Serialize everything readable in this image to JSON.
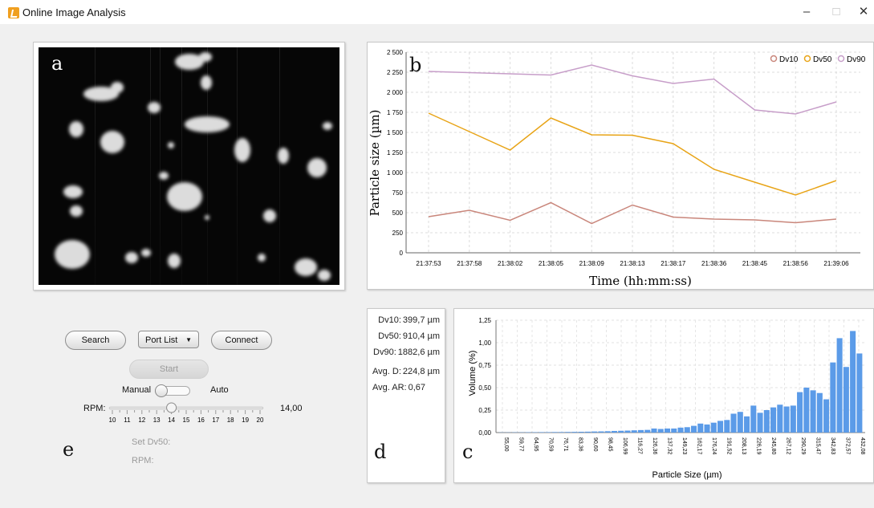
{
  "window": {
    "title": "Online Image Analysis",
    "minimize": "–",
    "maximize": "□",
    "close": "✕"
  },
  "panels": {
    "a": "a",
    "b": "b",
    "c": "c",
    "d": "d",
    "e": "e"
  },
  "controls": {
    "search_label": "Search",
    "port_list_label": "Port List",
    "connect_label": "Connect",
    "start_label": "Start",
    "mode_left": "Manual",
    "mode_right": "Auto",
    "mode_value": "Manual",
    "rpm_label": "RPM:",
    "rpm_value": "14,00",
    "rpm_ticks": [
      "10",
      "11",
      "12",
      "13",
      "14",
      "15",
      "16",
      "17",
      "18",
      "19",
      "20"
    ],
    "rpm_slider": {
      "min": 10,
      "max": 20,
      "value": 14
    },
    "set_dv50_label": "Set Dv50:",
    "rpm_setting_label": "RPM:"
  },
  "stats": [
    {
      "label": "Dv10:",
      "value": "399,7 µm"
    },
    {
      "label": "Dv50:",
      "value": "910,4 µm"
    },
    {
      "label": "Dv90:",
      "value": "1882,6 µm"
    },
    {
      "label": "Avg. D:",
      "value": "224,8 µm"
    },
    {
      "label": "Avg. AR:",
      "value": "0,67"
    }
  ],
  "chart_data": [
    {
      "type": "line",
      "xlabel": "Time (hh:mm:ss)",
      "ylabel": "Particle size (µm)",
      "ylim": [
        0,
        2500
      ],
      "yticks": [
        0,
        250,
        500,
        750,
        1000,
        1250,
        1500,
        1750,
        2000,
        2250,
        2500
      ],
      "ytick_labels": [
        "0",
        "250",
        "500",
        "750",
        "1 000",
        "1 250",
        "1 500",
        "1 750",
        "2 000",
        "2 250",
        "2 500"
      ],
      "categories": [
        "21:37:53",
        "21:37:58",
        "21:38:02",
        "21:38:05",
        "21:38:09",
        "21:38:13",
        "21:38:17",
        "21:38:36",
        "21:38:45",
        "21:38:56",
        "21:39:06"
      ],
      "grid": true,
      "legend_position": "top-right",
      "series": [
        {
          "name": "Dv10",
          "color": "#c9867b",
          "values": [
            450,
            530,
            405,
            625,
            365,
            595,
            445,
            420,
            410,
            375,
            420
          ]
        },
        {
          "name": "Dv50",
          "color": "#e8a417",
          "values": [
            1740,
            1510,
            1280,
            1680,
            1470,
            1465,
            1360,
            1040,
            880,
            720,
            900
          ]
        },
        {
          "name": "Dv90",
          "color": "#c79ec9",
          "values": [
            2260,
            2245,
            2230,
            2215,
            2340,
            2205,
            2110,
            2165,
            1780,
            1730,
            1880
          ]
        }
      ]
    },
    {
      "type": "bar",
      "xlabel": "Particle Size (µm)",
      "ylabel": "Volume (%)",
      "ylim": [
        0,
        1.25
      ],
      "yticks": [
        0,
        0.25,
        0.5,
        0.75,
        1,
        1.25
      ],
      "ytick_labels": [
        "0,00",
        "0,25",
        "0,50",
        "0,75",
        "1,00",
        "1,25"
      ],
      "grid": true,
      "color": "#5b9be8",
      "tick_labels": [
        "55,00",
        "59,77",
        "64,95",
        "70,59",
        "76,71",
        "83,36",
        "90,60",
        "98,45",
        "106,99",
        "116,27",
        "126,36",
        "137,32",
        "149,23",
        "162,17",
        "176,24",
        "191,52",
        "208,13",
        "226,19",
        "245,80",
        "267,12",
        "290,29",
        "315,47",
        "342,83",
        "372,57",
        "432,08"
      ],
      "values": [
        0.002,
        0.002,
        0.003,
        0.003,
        0.004,
        0.004,
        0.005,
        0.005,
        0.006,
        0.006,
        0.007,
        0.008,
        0.009,
        0.01,
        0.012,
        0.013,
        0.015,
        0.018,
        0.02,
        0.022,
        0.025,
        0.028,
        0.03,
        0.045,
        0.04,
        0.045,
        0.045,
        0.055,
        0.06,
        0.075,
        0.1,
        0.09,
        0.11,
        0.13,
        0.14,
        0.21,
        0.23,
        0.18,
        0.3,
        0.22,
        0.25,
        0.28,
        0.31,
        0.29,
        0.3,
        0.45,
        0.5,
        0.47,
        0.44,
        0.37,
        0.78,
        1.05,
        0.73,
        1.13,
        0.88
      ]
    }
  ]
}
